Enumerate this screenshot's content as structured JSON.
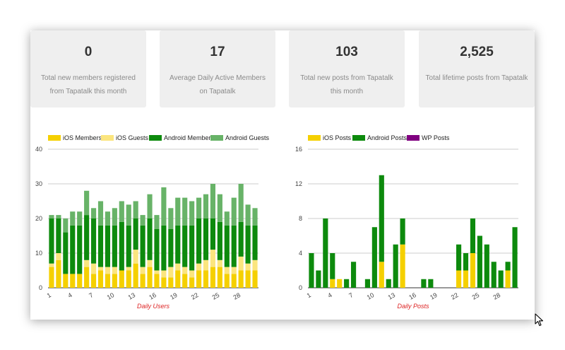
{
  "stats": [
    {
      "value": "0",
      "label": "Total new members registered from Tapatalk this month"
    },
    {
      "value": "17",
      "label": "Average Daily Active Members on Tapatalk"
    },
    {
      "value": "103",
      "label": "Total new posts from Tapatalk this month"
    },
    {
      "value": "2,525",
      "label": "Total lifetime posts from Tapatalk"
    }
  ],
  "colors": {
    "ios_members": "#f5d000",
    "ios_guests": "#fbe57e",
    "android_members": "#0d8a0d",
    "android_guests": "#68b368",
    "ios_posts": "#f5d000",
    "android_posts": "#0d8a0d",
    "wp_posts": "#800080",
    "xlabel": "#dd2222"
  },
  "chart_data": [
    {
      "type": "bar",
      "stacked": true,
      "xlabel": "Daily Users",
      "ylabel": "",
      "ylim": [
        0,
        40
      ],
      "yticks": [
        0,
        10,
        20,
        30,
        40
      ],
      "x": [
        1,
        2,
        3,
        4,
        5,
        6,
        7,
        8,
        9,
        10,
        11,
        12,
        13,
        14,
        15,
        16,
        17,
        18,
        19,
        20,
        21,
        22,
        23,
        24,
        25,
        26,
        27,
        28,
        29,
        30
      ],
      "xticks": [
        "1",
        "4",
        "7",
        "10",
        "13",
        "16",
        "19",
        "22",
        "25",
        "28"
      ],
      "legend_position": "top",
      "series": [
        {
          "name": "iOS Members",
          "color_key": "ios_members",
          "values": [
            6,
            8,
            4,
            4,
            4,
            6,
            4,
            5,
            4,
            4,
            5,
            5,
            7,
            4,
            6,
            4,
            3,
            3,
            5,
            4,
            3,
            5,
            5,
            6,
            6,
            4,
            4,
            5,
            5,
            5
          ]
        },
        {
          "name": "iOS Guests",
          "color_key": "ios_guests",
          "values": [
            1,
            2,
            0,
            0,
            0,
            2,
            3,
            1,
            2,
            2,
            0,
            1,
            4,
            2,
            2,
            1,
            2,
            3,
            2,
            2,
            2,
            2,
            3,
            5,
            2,
            2,
            2,
            4,
            2,
            3
          ]
        },
        {
          "name": "Android Members",
          "color_key": "android_members",
          "values": [
            13,
            10,
            12,
            14,
            14,
            13,
            13,
            12,
            12,
            12,
            14,
            12,
            9,
            12,
            12,
            12,
            13,
            11,
            11,
            12,
            13,
            13,
            12,
            9,
            11,
            12,
            12,
            10,
            11,
            10
          ]
        },
        {
          "name": "Android Guests",
          "color_key": "android_guests",
          "values": [
            1,
            1,
            4,
            4,
            4,
            7,
            3,
            7,
            4,
            5,
            6,
            6,
            5,
            3,
            7,
            4,
            11,
            6,
            8,
            8,
            7,
            6,
            7,
            10,
            8,
            4,
            8,
            11,
            6,
            5
          ]
        }
      ]
    },
    {
      "type": "bar",
      "stacked": true,
      "xlabel": "Daily Posts",
      "ylabel": "",
      "ylim": [
        0,
        16
      ],
      "yticks": [
        0,
        4,
        8,
        12,
        16
      ],
      "x": [
        1,
        2,
        3,
        4,
        5,
        6,
        7,
        8,
        9,
        10,
        11,
        12,
        13,
        14,
        15,
        16,
        17,
        18,
        19,
        20,
        21,
        22,
        23,
        24,
        25,
        26,
        27,
        28,
        29,
        30
      ],
      "xticks": [
        "1",
        "4",
        "7",
        "10",
        "13",
        "16",
        "19",
        "22",
        "25",
        "28"
      ],
      "legend_position": "top",
      "series": [
        {
          "name": "iOS Posts",
          "color_key": "ios_posts",
          "values": [
            0,
            0,
            0,
            1,
            1,
            0,
            0,
            0,
            0,
            0,
            3,
            0,
            0,
            5,
            0,
            0,
            0,
            0,
            0,
            0,
            0,
            2,
            2,
            4,
            0,
            0,
            0,
            0,
            2,
            0
          ]
        },
        {
          "name": "Android Posts",
          "color_key": "android_posts",
          "values": [
            4,
            2,
            8,
            3,
            0,
            1,
            3,
            0,
            1,
            7,
            10,
            1,
            5,
            3,
            0,
            0,
            1,
            1,
            0,
            0,
            0,
            3,
            2,
            4,
            6,
            5,
            3,
            2,
            1,
            7
          ]
        },
        {
          "name": "WP Posts",
          "color_key": "wp_posts",
          "values": [
            0,
            0,
            0,
            0,
            0,
            0,
            0,
            0,
            0,
            0,
            0,
            0,
            0,
            0,
            0,
            0,
            0,
            0,
            0,
            0,
            0,
            0,
            0,
            0,
            0,
            0,
            0,
            0,
            0,
            0
          ]
        }
      ]
    }
  ]
}
